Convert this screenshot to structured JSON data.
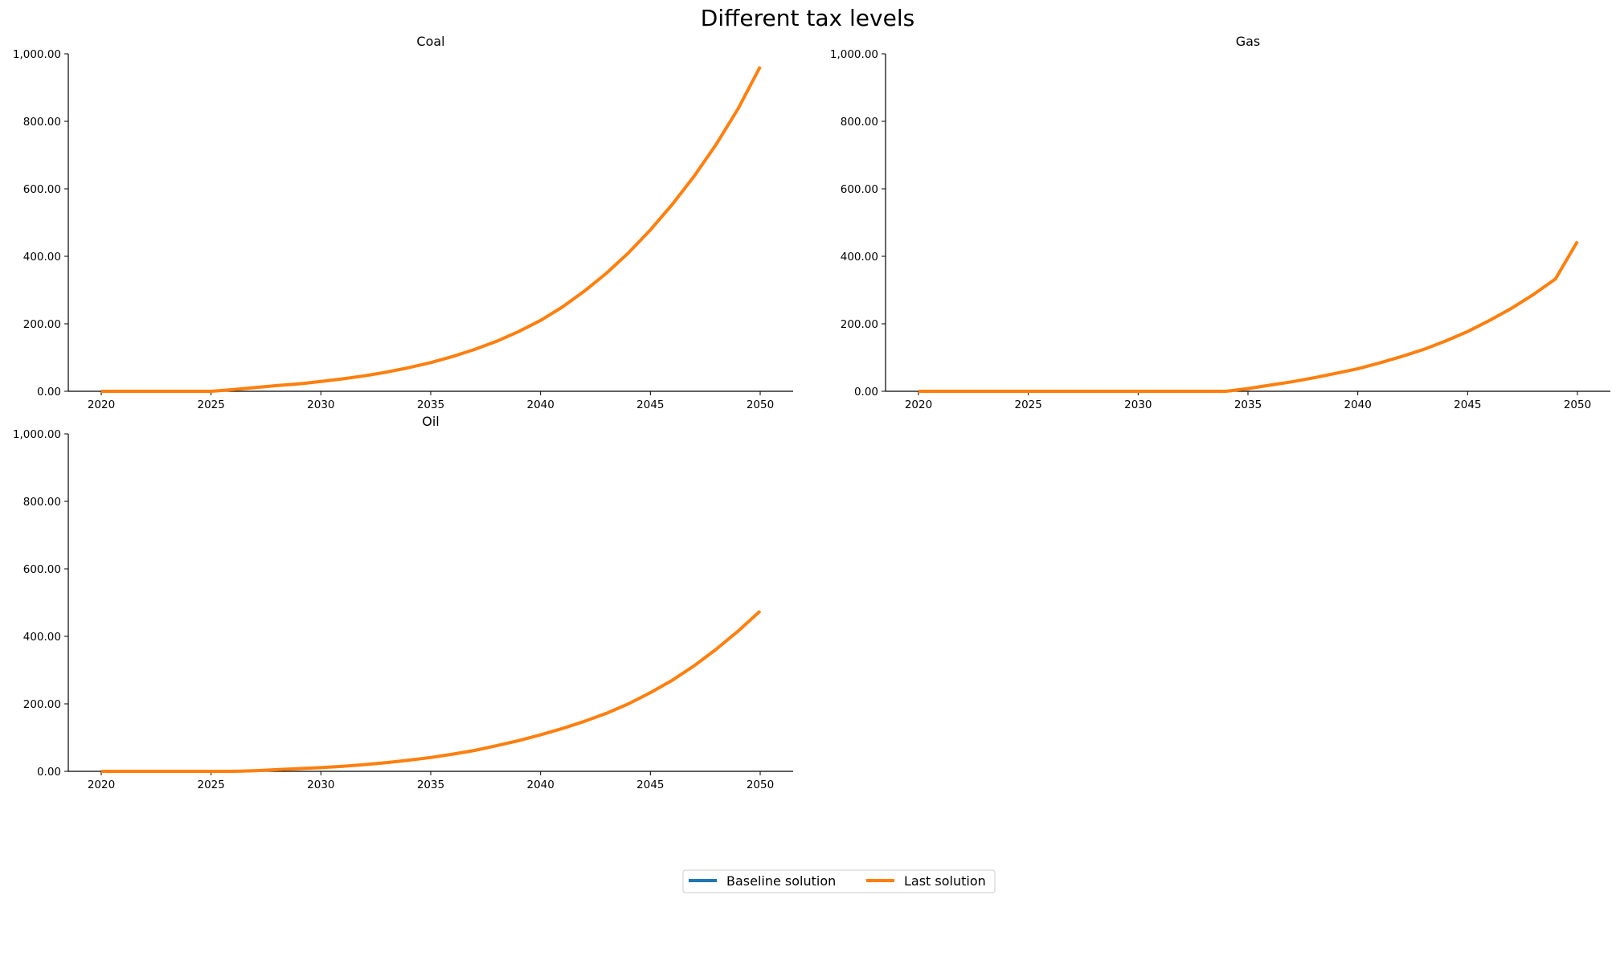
{
  "figure_title": "Different tax levels",
  "colors": {
    "baseline": "#1f77b4",
    "last": "#ff7f0e"
  },
  "legend": {
    "placement": "bottom-center",
    "entries": [
      {
        "label": "Baseline solution",
        "color": "#1f77b4"
      },
      {
        "label": "Last solution",
        "color": "#ff7f0e"
      }
    ]
  },
  "chart_data": [
    {
      "type": "line",
      "title": "Coal",
      "xlabel": "",
      "ylabel": "",
      "xlim": [
        2018.5,
        2051.5
      ],
      "ylim": [
        0,
        1000
      ],
      "xticks": [
        2020,
        2025,
        2030,
        2035,
        2040,
        2045,
        2050
      ],
      "yticks": [
        0,
        200,
        400,
        600,
        800,
        1000
      ],
      "ytick_labels": [
        "0.00",
        "200.00",
        "400.00",
        "600.00",
        "800.00",
        "1,000.00"
      ],
      "grid": false,
      "x": [
        2020,
        2021,
        2022,
        2023,
        2024,
        2025,
        2026,
        2027,
        2028,
        2029,
        2030,
        2031,
        2032,
        2033,
        2034,
        2035,
        2036,
        2037,
        2038,
        2039,
        2040,
        2041,
        2042,
        2043,
        2044,
        2045,
        2046,
        2047,
        2048,
        2049,
        2050
      ],
      "series": [
        {
          "name": "Last solution",
          "values": [
            0,
            0,
            0,
            0,
            0,
            0,
            5,
            11,
            17,
            22,
            29,
            37,
            46,
            57,
            70,
            85,
            103,
            124,
            148,
            177,
            210,
            250,
            297,
            350,
            410,
            478,
            554,
            638,
            732,
            838,
            962
          ]
        }
      ]
    },
    {
      "type": "line",
      "title": "Gas",
      "xlabel": "",
      "ylabel": "",
      "xlim": [
        2018.5,
        2051.5
      ],
      "ylim": [
        0,
        1000
      ],
      "xticks": [
        2020,
        2025,
        2030,
        2035,
        2040,
        2045,
        2050
      ],
      "yticks": [
        0,
        200,
        400,
        600,
        800,
        1000
      ],
      "ytick_labels": [
        "0.00",
        "200.00",
        "400.00",
        "600.00",
        "800.00",
        "1,000.00"
      ],
      "grid": false,
      "x": [
        2020,
        2021,
        2022,
        2023,
        2024,
        2025,
        2026,
        2027,
        2028,
        2029,
        2030,
        2031,
        2032,
        2033,
        2034,
        2035,
        2036,
        2037,
        2038,
        2039,
        2040,
        2041,
        2042,
        2043,
        2044,
        2045,
        2046,
        2047,
        2048,
        2049,
        2050
      ],
      "series": [
        {
          "name": "Last solution",
          "values": [
            0,
            0,
            0,
            0,
            0,
            0,
            0,
            0,
            0,
            0,
            0,
            0,
            0,
            0,
            0,
            8,
            18,
            28,
            40,
            53,
            67,
            84,
            103,
            124,
            149,
            177,
            210,
            246,
            287,
            333,
            444
          ]
        }
      ]
    },
    {
      "type": "line",
      "title": "Oil",
      "xlabel": "",
      "ylabel": "",
      "xlim": [
        2018.5,
        2051.5
      ],
      "ylim": [
        0,
        1000
      ],
      "xticks": [
        2020,
        2025,
        2030,
        2035,
        2040,
        2045,
        2050
      ],
      "yticks": [
        0,
        200,
        400,
        600,
        800,
        1000
      ],
      "ytick_labels": [
        "0.00",
        "200.00",
        "400.00",
        "600.00",
        "800.00",
        "1,000.00"
      ],
      "grid": false,
      "x": [
        2020,
        2021,
        2022,
        2023,
        2024,
        2025,
        2026,
        2027,
        2028,
        2029,
        2030,
        2031,
        2032,
        2033,
        2034,
        2035,
        2036,
        2037,
        2038,
        2039,
        2040,
        2041,
        2042,
        2043,
        2044,
        2045,
        2046,
        2047,
        2048,
        2049,
        2050
      ],
      "series": [
        {
          "name": "Last solution",
          "values": [
            0,
            0,
            0,
            0,
            0,
            0,
            0,
            2,
            5,
            8,
            11,
            15,
            20,
            26,
            33,
            41,
            51,
            62,
            76,
            91,
            108,
            127,
            148,
            172,
            200,
            233,
            270,
            313,
            362,
            416,
            475
          ]
        }
      ]
    }
  ]
}
